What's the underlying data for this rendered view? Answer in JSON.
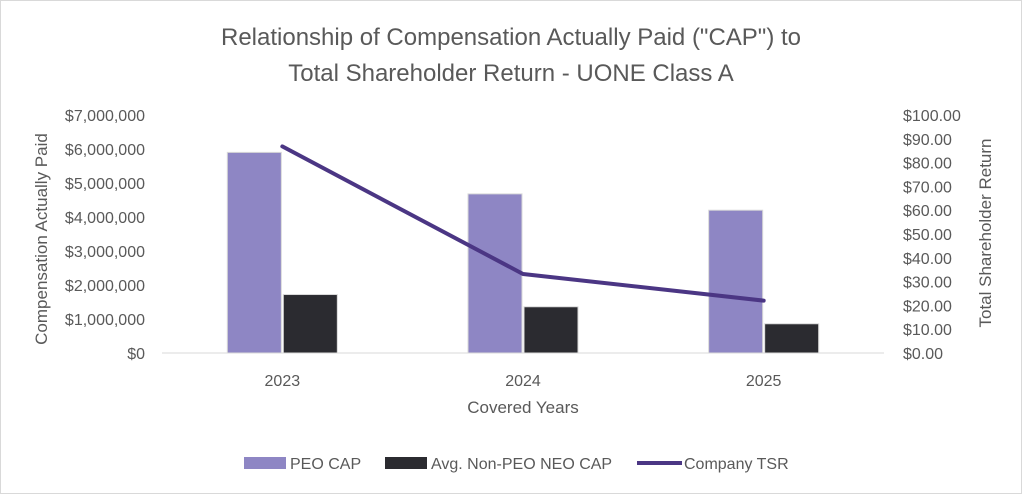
{
  "chart_data": {
    "type": "bar",
    "title_lines": [
      "Relationship of Compensation Actually Paid (\"CAP\") to",
      "Total Shareholder Return - UONE Class A"
    ],
    "xlabel": "Covered Years",
    "ylabel": "Compensation Actually Paid",
    "y2label": "Total Shareholder Return",
    "categories": [
      "2023",
      "2024",
      "2025"
    ],
    "ylim": [
      0,
      7000000
    ],
    "y2lim": [
      0,
      100
    ],
    "yticks": [
      "$0",
      "$1,000,000",
      "$2,000,000",
      "$3,000,000",
      "$4,000,000",
      "$5,000,000",
      "$6,000,000",
      "$7,000,000"
    ],
    "y2ticks": [
      "$0.00",
      "$10.00",
      "$20.00",
      "$30.00",
      "$40.00",
      "$50.00",
      "$60.00",
      "$70.00",
      "$80.00",
      "$90.00",
      "$100.00"
    ],
    "series": [
      {
        "name": "PEO CAP",
        "type": "bar",
        "axis": "left",
        "color": "#8e86c4",
        "values": [
          5900000,
          4680000,
          4200000
        ]
      },
      {
        "name": "Avg. Non-PEO NEO CAP",
        "type": "bar",
        "axis": "left",
        "color": "#2b2b30",
        "values": [
          1720000,
          1360000,
          860000
        ]
      },
      {
        "name": "Company TSR",
        "type": "line",
        "axis": "right",
        "color": "#4b3684",
        "values": [
          86.8,
          33.2,
          22.0
        ]
      }
    ],
    "grid": false,
    "legend_position": "bottom"
  }
}
